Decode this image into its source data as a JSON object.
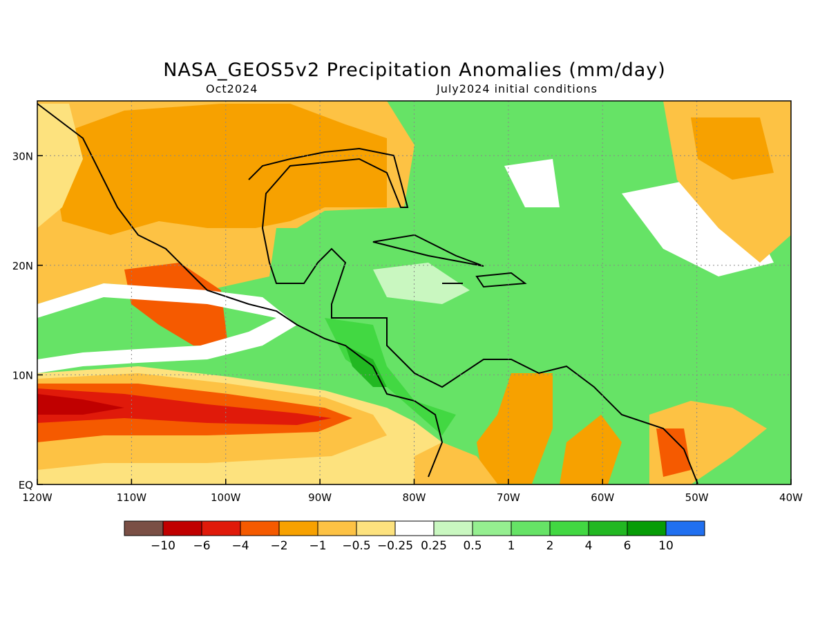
{
  "title": "NASA_GEOS5v2 Precipitation Anomalies (mm/day)",
  "subtitle_left": "Oct2024",
  "subtitle_right": "July2024 initial conditions",
  "map": {
    "lon_range": [
      -120,
      -40
    ],
    "lat_range": [
      0,
      35
    ],
    "x_ticks": [
      {
        "value": -120,
        "label": "120W"
      },
      {
        "value": -110,
        "label": "110W"
      },
      {
        "value": -100,
        "label": "100W"
      },
      {
        "value": -90,
        "label": "90W"
      },
      {
        "value": -80,
        "label": "80W"
      },
      {
        "value": -70,
        "label": "70W"
      },
      {
        "value": -60,
        "label": "60W"
      },
      {
        "value": -50,
        "label": "50W"
      },
      {
        "value": -40,
        "label": "40W"
      }
    ],
    "y_ticks": [
      {
        "value": 0,
        "label": "EQ"
      },
      {
        "value": 10,
        "label": "10N"
      },
      {
        "value": 20,
        "label": "20N"
      },
      {
        "value": 30,
        "label": "30N"
      }
    ],
    "grid": "dotted"
  },
  "colorbar": {
    "colors": [
      "#7a4f45",
      "#c00000",
      "#e01a0a",
      "#f55a00",
      "#f7a100",
      "#fdc244",
      "#fde27e",
      "#ffffff",
      "#c9f7c0",
      "#95ef90",
      "#66e366",
      "#42d842",
      "#22b822",
      "#069c06",
      "#2170f0"
    ],
    "labels": [
      "-10",
      "-6",
      "-4",
      "-2",
      "-1",
      "-0.5",
      "-0.25",
      "0.25",
      "0.5",
      "1",
      "2",
      "4",
      "6",
      "10"
    ]
  }
}
